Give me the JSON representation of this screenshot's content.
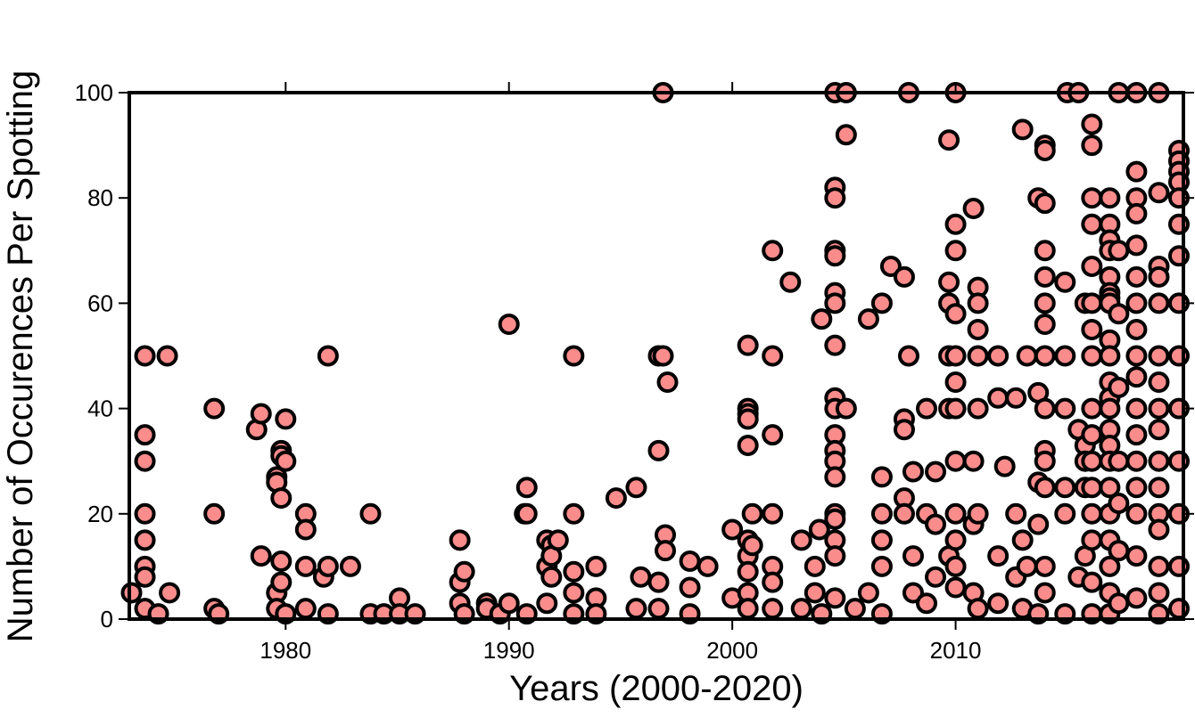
{
  "chart_data": {
    "type": "scatter",
    "x_label": "Years (2000-2020)",
    "y_label": "Number of Occurences Per Spotting",
    "color": "#fa8c8c",
    "xlim": [
      1973,
      2020.2
    ],
    "ylim": [
      0,
      100
    ],
    "xticks": [
      1980,
      1990,
      2000,
      2010
    ],
    "yticks": [
      0,
      20,
      40,
      60,
      80,
      100
    ],
    "x": [
      1973.1,
      1973.7,
      1973.7,
      1973.7,
      1973.7,
      1973.7,
      1973.7,
      1973.7,
      1973.7,
      1974.3,
      1974.7,
      1974.8,
      1976.8,
      1976.8,
      1976.8,
      1977.0,
      1978.7,
      1978.9,
      1978.9,
      1979.6,
      1979.6,
      1979.6,
      1979.6,
      1979.8,
      1979.8,
      1979.8,
      1979.8,
      1979.8,
      1980.0,
      1980.0,
      1980.0,
      1980.9,
      1980.9,
      1980.9,
      1980.9,
      1981.7,
      1981.9,
      1981.9,
      1981.9,
      1982.9,
      1983.8,
      1983.8,
      1984.4,
      1985.1,
      1985.1,
      1985.8,
      1987.8,
      1987.8,
      1987.8,
      1988.0,
      1988.0,
      1989.0,
      1989.0,
      1989.6,
      1990.0,
      1990.0,
      1990.7,
      1990.8,
      1990.8,
      1990.8,
      1991.7,
      1991.7,
      1991.7,
      1991.9,
      1991.9,
      1991.9,
      1992.2,
      1992.9,
      1992.9,
      1992.9,
      1992.9,
      1992.9,
      1993.9,
      1993.9,
      1993.9,
      1994.8,
      1995.7,
      1995.7,
      1995.9,
      1996.7,
      1996.7,
      1996.7,
      1996.7,
      1996.9,
      1996.9,
      1997.0,
      1997.0,
      1997.1,
      1998.1,
      1998.1,
      1998.1,
      1998.9,
      2000.0,
      2000.0,
      2000.7,
      2000.7,
      2000.7,
      2000.7,
      2000.7,
      2000.7,
      2000.7,
      2000.7,
      2000.7,
      2000.7,
      2000.9,
      2000.9,
      2001.8,
      2001.8,
      2001.8,
      2001.8,
      2001.8,
      2001.8,
      2001.8,
      2002.6,
      2003.1,
      2003.1,
      2003.7,
      2003.7,
      2003.9,
      2004.0,
      2004.0,
      2004.6,
      2004.6,
      2004.6,
      2004.6,
      2004.6,
      2004.6,
      2004.6,
      2004.6,
      2004.6,
      2004.6,
      2004.6,
      2004.6,
      2004.6,
      2004.6,
      2004.6,
      2004.6,
      2004.6,
      2004.6,
      2004.6,
      2005.1,
      2005.1,
      2005.1,
      2005.5,
      2006.1,
      2006.1,
      2006.7,
      2006.7,
      2006.7,
      2006.7,
      2006.7,
      2006.7,
      2007.1,
      2007.7,
      2007.7,
      2007.7,
      2007.7,
      2007.7,
      2007.9,
      2007.9,
      2008.1,
      2008.1,
      2008.1,
      2008.7,
      2008.7,
      2008.7,
      2009.1,
      2009.1,
      2009.1,
      2009.7,
      2009.7,
      2009.7,
      2009.7,
      2009.7,
      2009.7,
      2010.0,
      2010.0,
      2010.0,
      2010.0,
      2010.0,
      2010.0,
      2010.0,
      2010.0,
      2010.0,
      2010.0,
      2010.0,
      2010.0,
      2010.8,
      2010.8,
      2010.8,
      2010.8,
      2011.0,
      2011.0,
      2011.0,
      2011.0,
      2011.0,
      2011.0,
      2011.0,
      2011.9,
      2011.9,
      2011.9,
      2011.9,
      2012.2,
      2012.7,
      2012.7,
      2012.7,
      2013.0,
      2013.0,
      2013.0,
      2013.2,
      2013.2,
      2013.7,
      2013.7,
      2013.7,
      2013.7,
      2013.7,
      2014.0,
      2014.0,
      2014.0,
      2014.0,
      2014.0,
      2014.0,
      2014.0,
      2014.0,
      2014.0,
      2014.0,
      2014.0,
      2014.0,
      2014.0,
      2014.0,
      2014.9,
      2014.9,
      2014.9,
      2014.9,
      2014.9,
      2014.9,
      2015.0,
      2015.5,
      2015.5,
      2015.5,
      2015.8,
      2015.8,
      2015.8,
      2015.8,
      2015.8,
      2016.1,
      2016.1,
      2016.1,
      2016.1,
      2016.1,
      2016.1,
      2016.1,
      2016.1,
      2016.1,
      2016.1,
      2016.1,
      2016.1,
      2016.1,
      2016.1,
      2016.1,
      2016.1,
      2016.9,
      2016.9,
      2016.9,
      2016.9,
      2016.9,
      2016.9,
      2016.9,
      2016.9,
      2016.9,
      2016.9,
      2016.9,
      2016.9,
      2016.9,
      2016.9,
      2016.9,
      2016.9,
      2016.9,
      2016.9,
      2016.9,
      2016.9,
      2016.9,
      2016.9,
      2017.3,
      2017.3,
      2017.3,
      2017.3,
      2017.3,
      2017.3,
      2017.3,
      2017.3,
      2018.1,
      2018.1,
      2018.1,
      2018.1,
      2018.1,
      2018.1,
      2018.1,
      2018.1,
      2018.1,
      2018.1,
      2018.1,
      2018.1,
      2018.1,
      2018.1,
      2018.1,
      2018.1,
      2018.1,
      2019.1,
      2019.1,
      2019.1,
      2019.1,
      2019.1,
      2019.1,
      2019.1,
      2019.1,
      2019.1,
      2019.1,
      2019.1,
      2019.1,
      2019.1,
      2019.1,
      2019.1,
      2019.1,
      2020.0,
      2020.0,
      2020.0,
      2020.0,
      2020.0,
      2020.0,
      2020.0,
      2020.0,
      2020.0,
      2020.0,
      2020.0,
      2020.0,
      2020.0,
      2020.0
    ],
    "values": [
      5,
      50,
      35,
      30,
      20,
      15,
      10,
      8,
      2,
      1,
      50,
      5,
      40,
      20,
      2,
      1,
      36,
      39,
      12,
      27,
      26,
      5,
      2,
      32,
      31,
      23,
      11,
      7,
      38,
      30,
      1,
      20,
      17,
      10,
      2,
      8,
      50,
      10,
      1,
      10,
      20,
      1,
      1,
      4,
      1,
      1,
      15,
      7,
      3,
      9,
      1,
      3,
      2,
      1,
      56,
      3,
      20,
      25,
      20,
      1,
      15,
      10,
      3,
      14,
      12,
      8,
      15,
      50,
      20,
      9,
      5,
      1,
      10,
      4,
      1,
      23,
      25,
      2,
      8,
      50,
      32,
      7,
      2,
      100,
      50,
      16,
      13,
      45,
      11,
      6,
      1,
      10,
      17,
      4,
      52,
      40,
      39,
      38,
      33,
      15,
      12,
      9,
      5,
      2,
      20,
      14,
      70,
      50,
      35,
      20,
      10,
      7,
      2,
      64,
      15,
      2,
      10,
      5,
      17,
      57,
      1,
      100,
      82,
      80,
      70,
      69,
      62,
      60,
      52,
      42,
      40,
      35,
      32,
      30,
      27,
      20,
      19,
      15,
      12,
      4,
      100,
      92,
      40,
      2,
      57,
      5,
      60,
      27,
      20,
      15,
      10,
      1,
      67,
      65,
      38,
      36,
      23,
      20,
      100,
      50,
      28,
      12,
      5,
      40,
      20,
      3,
      28,
      18,
      8,
      91,
      64,
      60,
      50,
      40,
      12,
      100,
      75,
      70,
      58,
      50,
      45,
      40,
      30,
      20,
      15,
      10,
      6,
      78,
      30,
      18,
      5,
      63,
      60,
      55,
      50,
      40,
      20,
      2,
      50,
      42,
      12,
      3,
      29,
      42,
      20,
      8,
      93,
      15,
      2,
      50,
      10,
      80,
      43,
      26,
      18,
      1,
      90,
      89,
      79,
      70,
      65,
      60,
      56,
      50,
      40,
      32,
      30,
      25,
      10,
      5,
      64,
      50,
      40,
      25,
      20,
      1,
      100,
      100,
      36,
      8,
      60,
      33,
      30,
      25,
      12,
      94,
      90,
      80,
      75,
      67,
      60,
      55,
      50,
      40,
      35,
      30,
      25,
      20,
      15,
      7,
      1,
      80,
      75,
      72,
      70,
      65,
      62,
      61,
      60,
      53,
      50,
      45,
      42,
      40,
      36,
      33,
      30,
      25,
      20,
      15,
      10,
      5,
      1,
      100,
      70,
      58,
      44,
      30,
      22,
      13,
      3,
      85,
      80,
      77,
      71,
      65,
      60,
      55,
      50,
      46,
      40,
      35,
      30,
      25,
      20,
      12,
      4,
      100,
      100,
      81,
      67,
      65,
      60,
      50,
      45,
      40,
      36,
      30,
      25,
      20,
      17,
      10,
      5,
      1,
      89,
      87,
      85,
      83,
      80,
      75,
      69,
      60,
      50,
      40,
      30,
      20,
      10,
      2
    ]
  }
}
